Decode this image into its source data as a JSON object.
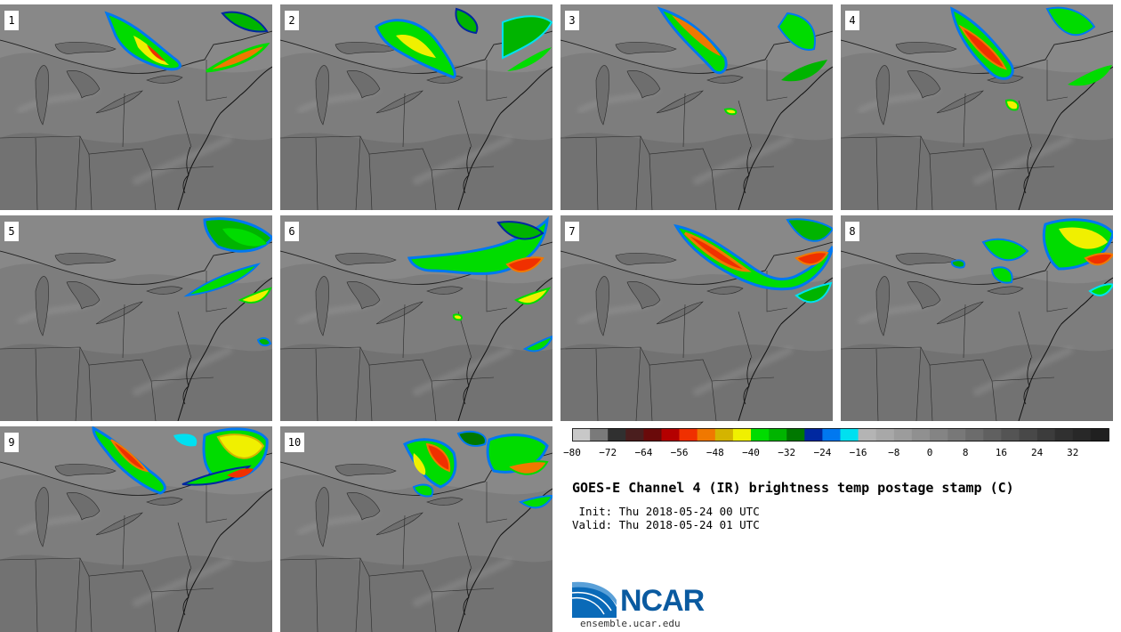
{
  "panels": [
    {
      "label": "1"
    },
    {
      "label": "2"
    },
    {
      "label": "3"
    },
    {
      "label": "4"
    },
    {
      "label": "5"
    },
    {
      "label": "6"
    },
    {
      "label": "7"
    },
    {
      "label": "8"
    },
    {
      "label": "9"
    },
    {
      "label": "10"
    }
  ],
  "colorbar": {
    "ticks": [
      "−80",
      "−72",
      "−64",
      "−56",
      "−48",
      "−40",
      "−32",
      "−24",
      "−16",
      "−8",
      "0",
      "8",
      "16",
      "24",
      "32"
    ],
    "colors": [
      "#c8c8c8",
      "#7a7a7a",
      "#303030",
      "#4a1e1e",
      "#6a0a0a",
      "#b40000",
      "#f03000",
      "#f07800",
      "#d4b400",
      "#f0f000",
      "#00dc00",
      "#00b400",
      "#007800",
      "#0028a0",
      "#0078f0",
      "#00e0f0",
      "#b4b4b4",
      "#a8a8a8",
      "#9c9c9c",
      "#909090",
      "#848484",
      "#787878",
      "#6c6c6c",
      "#606060",
      "#545454",
      "#484848",
      "#3c3c3c",
      "#303030",
      "#282828",
      "#202020"
    ]
  },
  "title": "GOES-E Channel 4 (IR) brightness temp postage stamp (C)",
  "init": " Init: Thu 2018-05-24 00 UTC",
  "valid": "Valid: Thu 2018-05-24 01 UTC",
  "logo": {
    "text": "NCAR",
    "site": "ensemble.ucar.edu"
  }
}
